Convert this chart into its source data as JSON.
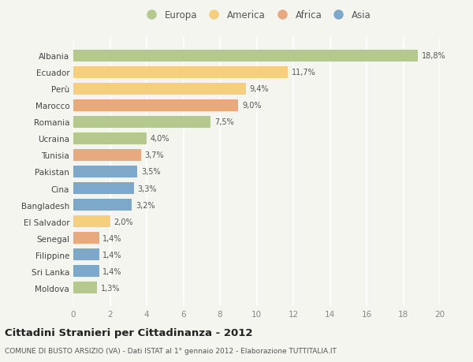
{
  "countries": [
    "Albania",
    "Ecuador",
    "Perù",
    "Marocco",
    "Romania",
    "Ucraina",
    "Tunisia",
    "Pakistan",
    "Cina",
    "Bangladesh",
    "El Salvador",
    "Senegal",
    "Filippine",
    "Sri Lanka",
    "Moldova"
  ],
  "values": [
    18.8,
    11.7,
    9.4,
    9.0,
    7.5,
    4.0,
    3.7,
    3.5,
    3.3,
    3.2,
    2.0,
    1.4,
    1.4,
    1.4,
    1.3
  ],
  "labels": [
    "18,8%",
    "11,7%",
    "9,4%",
    "9,0%",
    "7,5%",
    "4,0%",
    "3,7%",
    "3,5%",
    "3,3%",
    "3,2%",
    "2,0%",
    "1,4%",
    "1,4%",
    "1,4%",
    "1,3%"
  ],
  "continents": [
    "Europa",
    "America",
    "America",
    "Africa",
    "Europa",
    "Europa",
    "Africa",
    "Asia",
    "Asia",
    "Asia",
    "America",
    "Africa",
    "Asia",
    "Asia",
    "Europa"
  ],
  "colors": {
    "Europa": "#b5c98e",
    "America": "#f5cf7e",
    "Africa": "#e8a97e",
    "Asia": "#7ea8c9"
  },
  "legend_order": [
    "Europa",
    "America",
    "Africa",
    "Asia"
  ],
  "title": "Cittadini Stranieri per Cittadinanza - 2012",
  "subtitle": "COMUNE DI BUSTO ARSIZIO (VA) - Dati ISTAT al 1° gennaio 2012 - Elaborazione TUTTITALIA.IT",
  "xlim": [
    0,
    20
  ],
  "xticks": [
    0,
    2,
    4,
    6,
    8,
    10,
    12,
    14,
    16,
    18,
    20
  ],
  "bg_color": "#f5f5f0",
  "grid_color": "#ffffff",
  "bar_height": 0.72
}
